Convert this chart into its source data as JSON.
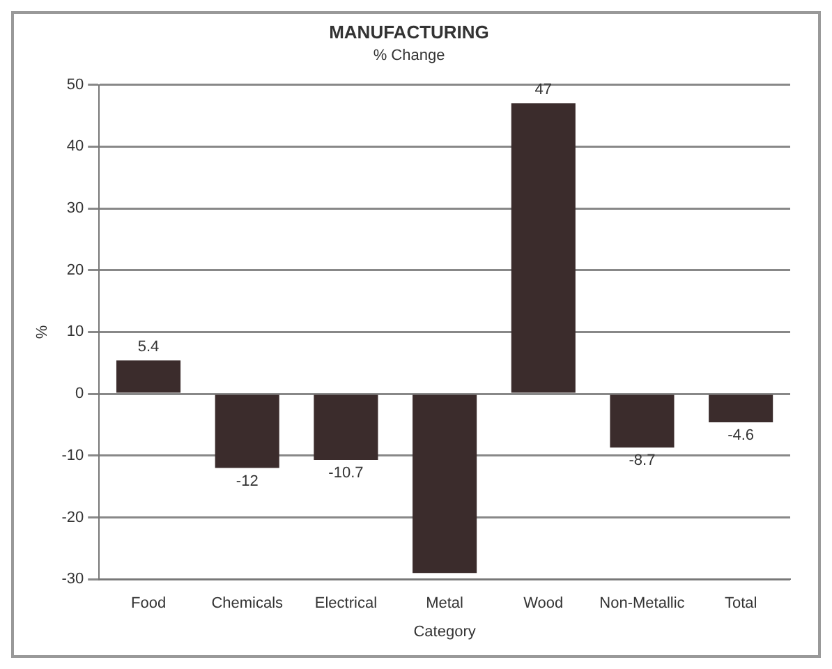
{
  "chart_data": {
    "type": "bar",
    "title": "MANUFACTURING",
    "subtitle": "% Change",
    "xlabel": "Category",
    "ylabel": "%",
    "categories": [
      "Food",
      "Chemicals",
      "Electrical",
      "Metal",
      "Wood",
      "Non-Metallic",
      "Total"
    ],
    "values": [
      5.4,
      -12,
      -10.7,
      -29,
      47,
      -8.7,
      -4.6
    ],
    "value_labels": [
      "5.4",
      "-12",
      "-10.7",
      null,
      "47",
      "-8.7",
      "-4.6"
    ],
    "color": "#3b2c2c",
    "ylim": [
      -30,
      50
    ],
    "yticks": [
      -30,
      -20,
      -10,
      0,
      10,
      20,
      30,
      40,
      50
    ],
    "grid": "y",
    "legend": false
  }
}
